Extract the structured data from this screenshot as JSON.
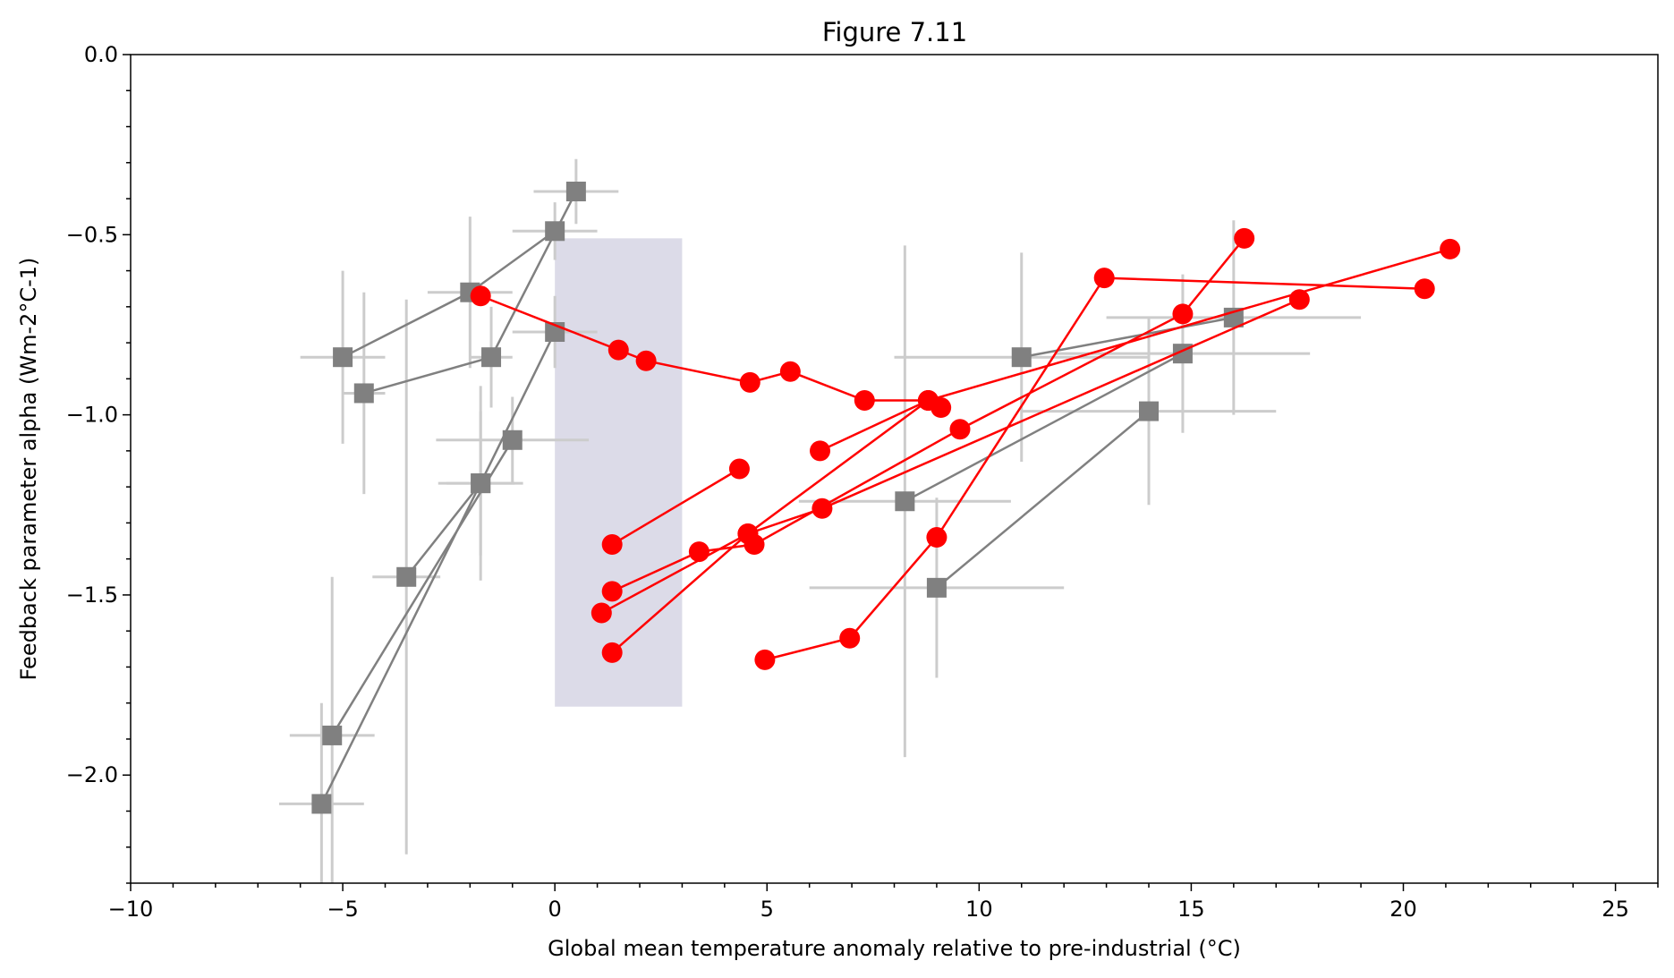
{
  "chart_data": {
    "type": "scatter",
    "title": "Figure 7.11",
    "xlabel": "Global mean temperature anomaly relative to pre-industrial (°C)",
    "ylabel": "Feedback parameter alpha (Wm-2°C-1)",
    "xlim": [
      -10,
      26
    ],
    "ylim": [
      -2.3,
      0.0
    ],
    "x_ticks": [
      -10,
      -5,
      0,
      5,
      10,
      15,
      20,
      25
    ],
    "x_tick_labels": [
      "−10",
      "−5",
      "0",
      "5",
      "10",
      "15",
      "20",
      "25"
    ],
    "y_ticks": [
      -2.0,
      -1.5,
      -1.0,
      -0.5,
      0.0
    ],
    "y_tick_labels": [
      "−2.0",
      "−1.5",
      "−1.0",
      "−0.5",
      "0.0"
    ],
    "grid": false,
    "shaded_region": {
      "x": [
        0,
        3
      ],
      "y": [
        -1.81,
        -0.51
      ],
      "color": "#dcdbe8"
    },
    "colors": {
      "gray_series": "#808080",
      "red_series": "#ff0000",
      "error_bars": "#cccccc"
    },
    "gray_series": [
      {
        "points": [
          {
            "x": -5.0,
            "y": -0.84,
            "xerr": 1.0,
            "yerr": 0.24
          },
          {
            "x": -2.0,
            "y": -0.66,
            "xerr": 1.0,
            "yerr": 0.21
          },
          {
            "x": 0.0,
            "y": -0.49,
            "xerr": 1.0,
            "yerr": 0.08
          }
        ]
      },
      {
        "points": [
          {
            "x": -4.5,
            "y": -0.94,
            "xerr": 0.5,
            "yerr": 0.28
          },
          {
            "x": -1.5,
            "y": -0.84,
            "xerr": 0.5,
            "yerr": 0.14
          },
          {
            "x": 0.5,
            "y": -0.38,
            "xerr": 1.0,
            "yerr": 0.09
          }
        ]
      },
      {
        "points": [
          {
            "x": -5.5,
            "y": -2.08,
            "xerr": 1.0,
            "yerr": 0.28
          },
          {
            "x": -1.75,
            "y": -1.19,
            "xerr": 1.0,
            "yerr": 0.2
          },
          {
            "x": 0.0,
            "y": -0.77,
            "xerr": 1.0,
            "yerr": 0.1
          }
        ]
      },
      {
        "points": [
          {
            "x": -5.25,
            "y": -1.89,
            "xerr": 1.0,
            "yerr": 0.44
          },
          {
            "x": -1.0,
            "y": -1.07,
            "xerr": 1.8,
            "yerr": 0.12
          }
        ]
      },
      {
        "points": [
          {
            "x": -3.5,
            "y": -1.45,
            "xerr": 0.8,
            "yerr": 0.77
          },
          {
            "x": -1.75,
            "y": -1.19,
            "xerr": 0.8,
            "yerr": 0.27
          }
        ]
      },
      {
        "points": [
          {
            "x": 8.25,
            "y": -1.24,
            "xerr": 2.5,
            "yerr": 0.71
          },
          {
            "x": 14.8,
            "y": -0.83,
            "xerr": 3.0,
            "yerr": 0.22
          }
        ]
      },
      {
        "points": [
          {
            "x": 9.0,
            "y": -1.48,
            "xerr": 3.0,
            "yerr": 0.25
          },
          {
            "x": 14.0,
            "y": -0.99,
            "xerr": 3.0,
            "yerr": 0.26
          }
        ]
      },
      {
        "points": [
          {
            "x": 11.0,
            "y": -0.84,
            "xerr": 3.0,
            "yerr": 0.29
          },
          {
            "x": 16.0,
            "y": -0.73,
            "xerr": 3.0,
            "yerr": 0.27
          }
        ]
      }
    ],
    "red_series": [
      {
        "points": [
          {
            "x": -1.75,
            "y": -0.67
          },
          {
            "x": 1.5,
            "y": -0.82
          },
          {
            "x": 2.15,
            "y": -0.85
          },
          {
            "x": 4.6,
            "y": -0.91
          },
          {
            "x": 5.55,
            "y": -0.88
          },
          {
            "x": 7.3,
            "y": -0.96
          },
          {
            "x": 8.8,
            "y": -0.96
          },
          {
            "x": 9.1,
            "y": -0.98
          }
        ]
      },
      {
        "points": [
          {
            "x": 1.35,
            "y": -1.36
          },
          {
            "x": 4.35,
            "y": -1.15
          }
        ]
      },
      {
        "points": [
          {
            "x": 1.35,
            "y": -1.49
          },
          {
            "x": 3.4,
            "y": -1.38
          },
          {
            "x": 4.7,
            "y": -1.36
          },
          {
            "x": 9.55,
            "y": -1.04
          },
          {
            "x": 14.8,
            "y": -0.72
          },
          {
            "x": 16.25,
            "y": -0.51
          }
        ]
      },
      {
        "points": [
          {
            "x": 1.1,
            "y": -1.55
          },
          {
            "x": 4.55,
            "y": -1.33
          },
          {
            "x": 6.3,
            "y": -1.26
          },
          {
            "x": 17.55,
            "y": -0.68
          }
        ]
      },
      {
        "points": [
          {
            "x": 1.35,
            "y": -1.66
          },
          {
            "x": 4.55,
            "y": -1.33
          },
          {
            "x": 8.8,
            "y": -0.96
          }
        ]
      },
      {
        "points": [
          {
            "x": 4.95,
            "y": -1.68
          },
          {
            "x": 6.95,
            "y": -1.62
          },
          {
            "x": 9.0,
            "y": -1.34
          },
          {
            "x": 12.95,
            "y": -0.62
          },
          {
            "x": 20.5,
            "y": -0.65
          }
        ]
      },
      {
        "points": [
          {
            "x": 6.25,
            "y": -1.1
          },
          {
            "x": 8.8,
            "y": -0.96
          },
          {
            "x": 21.1,
            "y": -0.54
          }
        ]
      }
    ]
  }
}
